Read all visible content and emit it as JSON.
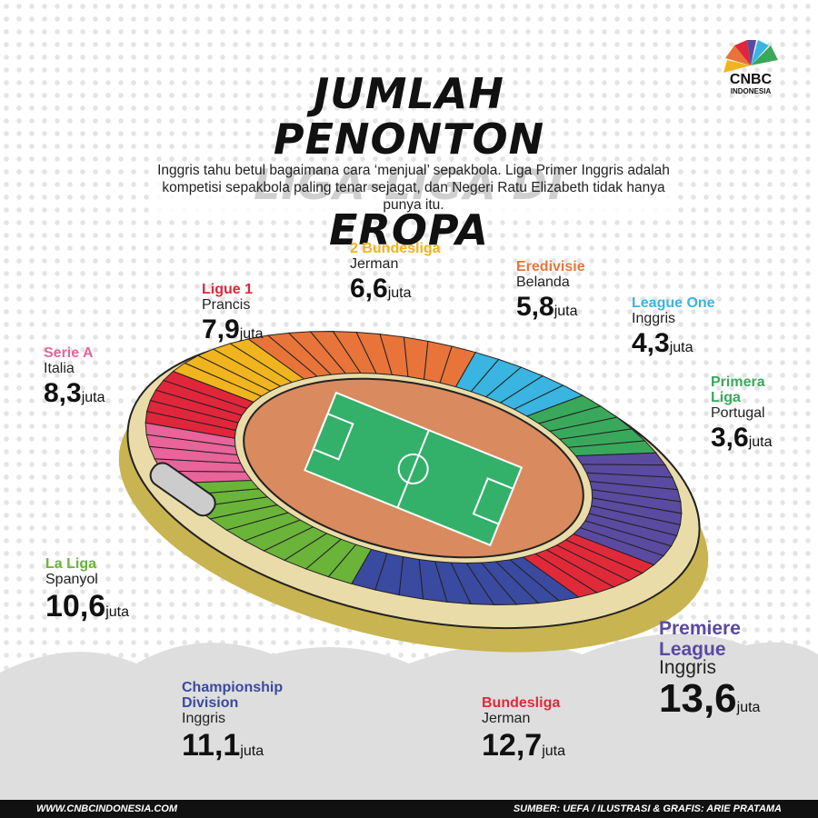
{
  "header": {
    "title_lines": [
      "JUMLAH PENONTON",
      "LIGA-LIGA DI EROPA"
    ],
    "subtitle": "Inggris tahu betul bagaimana cara ‘menjual’ sepakbola. Liga Primer Inggris adalah kompetisi sepakbola paling tenar sejagat, dan Negeri Ratu Elizabeth tidak hanya punya itu.",
    "logo": "CNBC",
    "logo_sub": "INDONESIA"
  },
  "leagues": [
    {
      "name": "Serie A",
      "country": "Italia",
      "value": "8,3",
      "unit": "juta",
      "color": "#e8649a"
    },
    {
      "name": "Ligue 1",
      "country": "Prancis",
      "value": "7,9",
      "unit": "juta",
      "color": "#e0263a"
    },
    {
      "name": "2 Bundesliga",
      "country": "Jerman",
      "value": "6,6",
      "unit": "juta",
      "color": "#f0b41e"
    },
    {
      "name": "Eredivisie",
      "country": "Belanda",
      "value": "5,8",
      "unit": "juta",
      "color": "#e8743a"
    },
    {
      "name": "League One",
      "country": "Inggris",
      "value": "4,3",
      "unit": "juta",
      "color": "#3ab4e0"
    },
    {
      "name": "Primera Liga",
      "country": "Portugal",
      "value": "3,6",
      "unit": "juta",
      "color": "#3aa85a"
    },
    {
      "name": "La Liga",
      "country": "Spanyol",
      "value": "10,6",
      "unit": "juta",
      "color": "#6ab43a"
    },
    {
      "name": "Championship Division",
      "country": "Inggris",
      "value": "11,1",
      "unit": "juta",
      "color": "#3a4aa0"
    },
    {
      "name": "Bundesliga",
      "country": "Jerman",
      "value": "12,7",
      "unit": "juta",
      "color": "#e02a3a"
    },
    {
      "name": "Premiere League",
      "country": "Inggris",
      "value": "13,6",
      "unit": "juta",
      "color": "#5a4aa0"
    }
  ],
  "footer": {
    "website": "WWW.CNBCINDONESIA.COM",
    "source": "SUMBER: UEFA / ILUSTRASI & GRAFIS: ARIE PRATAMA"
  }
}
